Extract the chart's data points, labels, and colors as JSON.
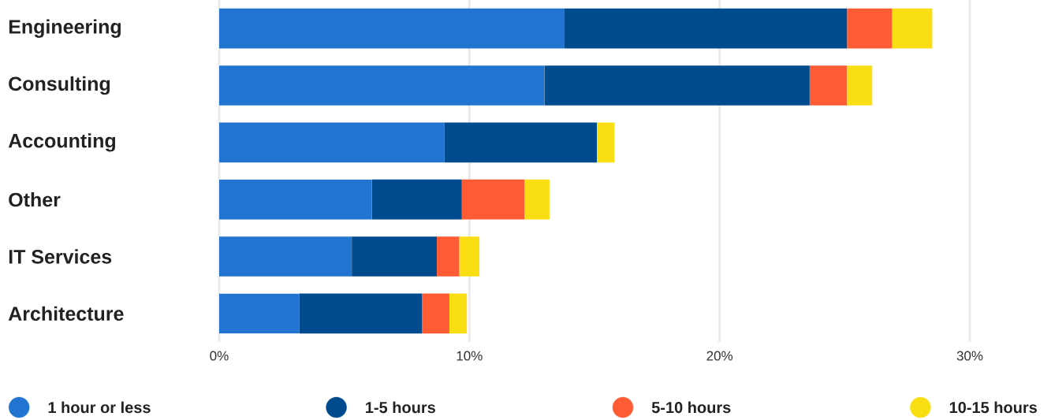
{
  "chart_data": {
    "type": "bar",
    "orientation": "horizontal",
    "stacked": true,
    "categories": [
      "Engineering",
      "Consulting",
      "Accounting",
      "Other",
      "IT Services",
      "Architecture"
    ],
    "series": [
      {
        "name": "1 hour or less",
        "color": "#2175d0",
        "values": [
          13.8,
          13.0,
          9.0,
          6.1,
          5.3,
          3.2
        ]
      },
      {
        "name": "1-5 hours",
        "color": "#004b8d",
        "values": [
          11.3,
          10.6,
          6.1,
          3.6,
          3.4,
          4.9
        ]
      },
      {
        "name": "5-10 hours",
        "color": "#ff5b35",
        "values": [
          1.8,
          1.5,
          null,
          2.5,
          0.9,
          1.1
        ]
      },
      {
        "name": "10-15 hours",
        "color": "#f9de14",
        "values": [
          1.6,
          1.0,
          0.7,
          1.0,
          0.8,
          0.7
        ]
      }
    ],
    "xlim": [
      0,
      30
    ],
    "xticks": [
      {
        "value": 0,
        "label": "0%"
      },
      {
        "value": 10,
        "label": "10%"
      },
      {
        "value": 20,
        "label": "20%"
      },
      {
        "value": 30,
        "label": "30%"
      }
    ],
    "grid": "x",
    "legend": "bottom"
  }
}
